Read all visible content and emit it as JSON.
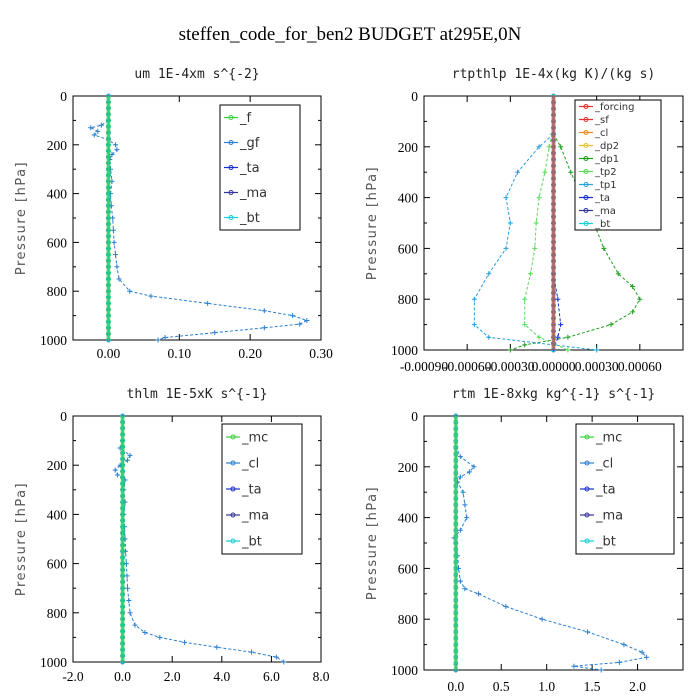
{
  "title": "steffen_code_for_ben2  BUDGET at295E,0N",
  "chart_data": [
    {
      "type": "line",
      "subtitle": "um   1E-4xm s^{-2}",
      "ylabel": "Pressure [hPa]",
      "xlim": [
        -0.05,
        0.3
      ],
      "ylim": [
        1000,
        0
      ],
      "xticks": [
        0.0,
        0.1,
        0.2,
        0.3
      ],
      "xtick_labels": [
        "0.00",
        "0.10",
        "0.20",
        "0.30"
      ],
      "yticks": [
        0,
        200,
        400,
        600,
        800,
        1000
      ],
      "ytick_labels": [
        "0",
        "200",
        "400",
        "600",
        "800",
        "1000"
      ],
      "legend_position": "top-right",
      "series": [
        {
          "name": "_f",
          "color": "#39d139",
          "y": [
            1000,
            0
          ],
          "x": [
            0,
            0
          ]
        },
        {
          "name": "_gf",
          "color": "#2b7fd0",
          "y": [
            100,
            120,
            130,
            145,
            160,
            180,
            200,
            220,
            240,
            260,
            300,
            350,
            400,
            450,
            500,
            550,
            600,
            650,
            700,
            750,
            800,
            820,
            850,
            880,
            900,
            920,
            935,
            950,
            970,
            990,
            1000
          ],
          "x": [
            0.0,
            -0.01,
            -0.025,
            -0.015,
            -0.02,
            0.0,
            0.01,
            0.012,
            0.005,
            0.002,
            0.003,
            0.005,
            0.003,
            0.004,
            0.006,
            0.007,
            0.008,
            0.01,
            0.012,
            0.015,
            0.03,
            0.06,
            0.14,
            0.22,
            0.26,
            0.28,
            0.27,
            0.22,
            0.15,
            0.08,
            0.07
          ]
        },
        {
          "name": "_ta",
          "color": "#1a2fd0",
          "y": [
            1000,
            0
          ],
          "x": [
            0,
            0
          ]
        },
        {
          "name": "_ma",
          "color": "#333399",
          "y": [
            1000,
            0
          ],
          "x": [
            0,
            0
          ]
        },
        {
          "name": "_bt",
          "color": "#17cfd6",
          "y": [
            1000,
            0
          ],
          "x": [
            0,
            0
          ]
        }
      ]
    },
    {
      "type": "line",
      "subtitle": "rtpthlp   1E-4x(kg K)/(kg s)",
      "ylabel": "Pressure [hPa]",
      "xlim": [
        -0.0009,
        0.0009
      ],
      "ylim": [
        1000,
        0
      ],
      "xticks": [
        -0.0009,
        -0.0006,
        -0.0003,
        0.0,
        0.0003,
        0.0006
      ],
      "xtick_labels": [
        "-0.00090",
        "-0.00060",
        "-0.00030",
        "0.00000",
        "0.00030",
        "0.00060"
      ],
      "yticks": [
        0,
        200,
        400,
        600,
        800,
        1000
      ],
      "ytick_labels": [
        "0",
        "200",
        "400",
        "600",
        "800",
        "1000"
      ],
      "legend_position": "top-right",
      "series": [
        {
          "name": "_forcing",
          "color": "#e0302a",
          "y": [
            1000,
            0
          ],
          "x": [
            0,
            0
          ]
        },
        {
          "name": "_sf",
          "color": "#e03030",
          "y": [
            1000,
            0
          ],
          "x": [
            0,
            0
          ]
        },
        {
          "name": "_cl",
          "color": "#f08a1c",
          "y": [
            1000,
            0
          ],
          "x": [
            0,
            0
          ]
        },
        {
          "name": "_dp2",
          "color": "#e8c02a",
          "y": [
            1000,
            0
          ],
          "x": [
            0,
            0
          ]
        },
        {
          "name": "_dp1",
          "color": "#1ea01e",
          "y": [
            150,
            200,
            300,
            400,
            500,
            600,
            700,
            750,
            800,
            850,
            900,
            950,
            980,
            1000
          ],
          "x": [
            0.0,
            5e-05,
            0.00012,
            0.0002,
            0.00028,
            0.00035,
            0.00045,
            0.00055,
            0.0006,
            0.00055,
            0.0004,
            0.0001,
            -0.0002,
            -0.0003
          ]
        },
        {
          "name": "_tp2",
          "color": "#5ad85a",
          "y": [
            150,
            200,
            300,
            400,
            500,
            600,
            700,
            800,
            900,
            950,
            1000
          ],
          "x": [
            -1e-05,
            -3e-05,
            -6e-05,
            -0.0001,
            -0.00012,
            -0.00013,
            -0.00016,
            -0.0002,
            -0.0002,
            -0.0001,
            0.0001
          ]
        },
        {
          "name": "_tp1",
          "color": "#2aa0d8",
          "y": [
            150,
            200,
            300,
            400,
            500,
            600,
            700,
            800,
            900,
            950,
            1000
          ],
          "x": [
            0.0,
            -0.0001,
            -0.00025,
            -0.00033,
            -0.0003,
            -0.00033,
            -0.00045,
            -0.00055,
            -0.00055,
            -0.00045,
            0.0003
          ]
        },
        {
          "name": "_ta",
          "color": "#1a2fd0",
          "y": [
            700,
            800,
            900,
            950,
            1000
          ],
          "x": [
            0.0,
            3e-05,
            5e-05,
            3e-05,
            0.0
          ]
        },
        {
          "name": "_ma",
          "color": "#333399",
          "y": [
            1000,
            0
          ],
          "x": [
            0,
            0
          ]
        },
        {
          "name": "_bt",
          "color": "#17cfd6",
          "y": [
            1000,
            0
          ],
          "x": [
            0,
            0
          ]
        }
      ]
    },
    {
      "type": "line",
      "subtitle": "thlm   1E-5xK s^{-1}",
      "ylabel": "Pressure [hPa]",
      "xlim": [
        -2.0,
        8.0
      ],
      "ylim": [
        1000,
        0
      ],
      "xticks": [
        -2.0,
        0.0,
        2.0,
        4.0,
        6.0,
        8.0
      ],
      "xtick_labels": [
        "-2.0",
        "0.0",
        "2.0",
        "4.0",
        "6.0",
        "8.0"
      ],
      "yticks": [
        0,
        200,
        400,
        600,
        800,
        1000
      ],
      "ytick_labels": [
        "0",
        "200",
        "400",
        "600",
        "800",
        "1000"
      ],
      "legend_position": "top-right",
      "series": [
        {
          "name": "_mc",
          "color": "#39d139",
          "y": [
            1000,
            0
          ],
          "x": [
            0,
            0
          ]
        },
        {
          "name": "_cl",
          "color": "#2b7fd0",
          "y": [
            100,
            130,
            160,
            180,
            200,
            220,
            240,
            260,
            300,
            350,
            400,
            450,
            500,
            550,
            600,
            650,
            700,
            750,
            800,
            850,
            880,
            900,
            920,
            940,
            960,
            980,
            1000
          ],
          "x": [
            0.0,
            -0.1,
            0.3,
            0.2,
            -0.1,
            -0.3,
            -0.2,
            0.1,
            0.05,
            0.1,
            0.05,
            0.08,
            0.1,
            0.12,
            0.15,
            0.18,
            0.2,
            0.25,
            0.3,
            0.5,
            0.9,
            1.5,
            2.5,
            3.8,
            5.2,
            6.2,
            6.5
          ]
        },
        {
          "name": "_ta",
          "color": "#1a2fd0",
          "y": [
            1000,
            0
          ],
          "x": [
            0,
            0
          ]
        },
        {
          "name": "_ma",
          "color": "#333399",
          "y": [
            1000,
            0
          ],
          "x": [
            0,
            0
          ]
        },
        {
          "name": "_bt",
          "color": "#17cfd6",
          "y": [
            1000,
            0
          ],
          "x": [
            0,
            0
          ]
        }
      ]
    },
    {
      "type": "line",
      "subtitle": "rtm   1E-8xkg kg^{-1} s^{-1}",
      "ylabel": "Pressure [hPa]",
      "xlim": [
        -0.35,
        2.5
      ],
      "ylim": [
        1000,
        0
      ],
      "xticks": [
        0.0,
        0.5,
        1.0,
        1.5,
        2.0
      ],
      "xtick_labels": [
        "0.0",
        "0.5",
        "1.0",
        "1.5",
        "2.0"
      ],
      "yticks": [
        0,
        200,
        400,
        600,
        800,
        1000
      ],
      "ytick_labels": [
        "0",
        "200",
        "400",
        "600",
        "800",
        "1000"
      ],
      "legend_position": "top-right",
      "series": [
        {
          "name": "_mc",
          "color": "#39d139",
          "y": [
            1000,
            0
          ],
          "x": [
            0,
            0
          ]
        },
        {
          "name": "_cl",
          "color": "#2b7fd0",
          "y": [
            120,
            160,
            200,
            220,
            240,
            260,
            300,
            350,
            400,
            450,
            480,
            500,
            550,
            600,
            650,
            680,
            700,
            750,
            800,
            850,
            900,
            930,
            950,
            970,
            985,
            1000
          ],
          "x": [
            0.0,
            0.05,
            0.2,
            0.15,
            0.05,
            0.02,
            0.08,
            0.1,
            0.12,
            0.05,
            -0.02,
            0.0,
            0.02,
            0.03,
            0.05,
            0.1,
            0.25,
            0.55,
            0.95,
            1.45,
            1.85,
            2.05,
            2.1,
            1.8,
            1.3,
            1.6
          ]
        },
        {
          "name": "_ta",
          "color": "#1a2fd0",
          "y": [
            1000,
            0
          ],
          "x": [
            0,
            0
          ]
        },
        {
          "name": "_ma",
          "color": "#333399",
          "y": [
            1000,
            0
          ],
          "x": [
            0,
            0
          ]
        },
        {
          "name": "_bt",
          "color": "#17cfd6",
          "y": [
            1000,
            0
          ],
          "x": [
            0,
            0
          ]
        }
      ]
    }
  ]
}
